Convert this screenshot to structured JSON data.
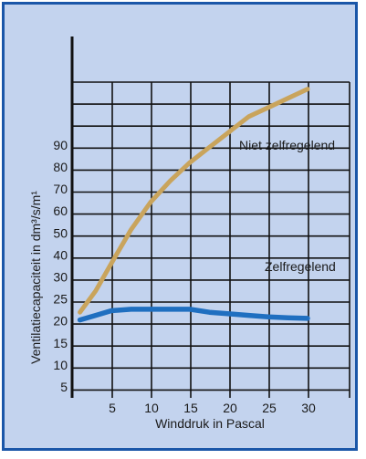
{
  "chart_data": {
    "type": "line",
    "title": "",
    "xlabel": "Winddruk in Pascal",
    "ylabel": "Ventilatiecapaciteit in dm³/s/m¹",
    "x_ticks": [
      5,
      10,
      15,
      20,
      25,
      30
    ],
    "y_tick_labels": [
      "5",
      "10",
      "15",
      "20",
      "25",
      "30",
      "40",
      "50",
      "60",
      "70",
      "80",
      "90"
    ],
    "grid": true,
    "series": [
      {
        "name": "Niet zelfregelend",
        "color": "#c9a45c",
        "x": [
          1,
          3,
          5,
          7.5,
          10,
          12.5,
          15,
          17.5,
          20,
          22.5,
          25,
          27.5,
          30
        ],
        "y": [
          "28",
          "35",
          "44",
          "55",
          "64",
          "71",
          "77",
          "82",
          "87",
          "92",
          "95",
          "98",
          "101"
        ]
      },
      {
        "name": "Zelfregelend",
        "color": "#1f6fc0",
        "x": [
          1,
          3,
          5,
          7.5,
          10,
          12.5,
          15,
          17.5,
          20,
          22.5,
          25,
          27.5,
          30
        ],
        "y": [
          "25.5",
          "27",
          "28.5",
          "29",
          "29",
          "29",
          "29",
          "28",
          "27.5",
          "27",
          "26.5",
          "26.2",
          "26"
        ]
      }
    ]
  }
}
